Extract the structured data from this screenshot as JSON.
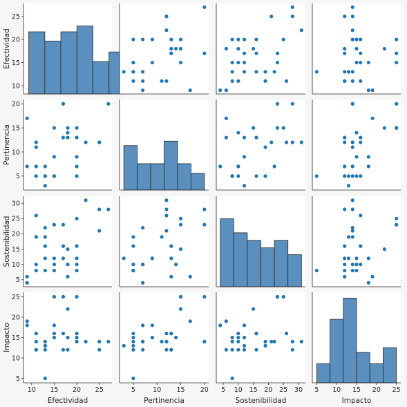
{
  "chart_data": {
    "type": "scatter",
    "subtype": "pairplot",
    "variables": [
      "Efectividad",
      "Pertinencia",
      "Sostenibilidad",
      "Impacto"
    ],
    "grid": false,
    "colors": {
      "marker": "#1f77b4",
      "hist_fill": "#5b8fbd",
      "hist_edge": "#262626",
      "background": "#f6f6f6",
      "panel": "#ffffff"
    },
    "axes": {
      "Efectividad": {
        "range": [
          8.2,
          27.8
        ],
        "ticks": [
          10,
          15,
          20,
          25
        ]
      },
      "Pertinencia": {
        "range": [
          2.1,
          20.9
        ],
        "ticks": [
          5,
          10,
          15,
          20
        ]
      },
      "Sostenibilidad": {
        "range": [
          2.7,
          32.3
        ],
        "ticks": [
          5,
          10,
          15,
          20,
          25,
          30
        ]
      },
      "Impacto": {
        "range": [
          3.9,
          26.1
        ],
        "ticks": [
          5,
          10,
          15,
          20,
          25
        ]
      }
    },
    "observations": [
      {
        "Efectividad": 9,
        "Pertinencia": 17,
        "Sostenibilidad": 6,
        "Impacto": 19
      },
      {
        "Efectividad": 9,
        "Pertinencia": 7,
        "Sostenibilidad": 4,
        "Impacto": 18
      },
      {
        "Efectividad": 11,
        "Pertinencia": 12,
        "Sostenibilidad": 26,
        "Impacto": 16
      },
      {
        "Efectividad": 11,
        "Pertinencia": 11,
        "Sostenibilidad": 19,
        "Impacto": 14
      },
      {
        "Efectividad": 11,
        "Pertinencia": 7,
        "Sostenibilidad": 10,
        "Impacto": 12
      },
      {
        "Efectividad": 11,
        "Pertinencia": 5,
        "Sostenibilidad": 8,
        "Impacto": 12
      },
      {
        "Efectividad": 13,
        "Pertinencia": 7,
        "Sostenibilidad": 22,
        "Impacto": 14
      },
      {
        "Efectividad": 13,
        "Pertinencia": 5,
        "Sostenibilidad": 19,
        "Impacto": 13
      },
      {
        "Efectividad": 13,
        "Pertinencia": 5,
        "Sostenibilidad": 16,
        "Impacto": 12
      },
      {
        "Efectividad": 13,
        "Pertinencia": 3,
        "Sostenibilidad": 12,
        "Impacto": 13
      },
      {
        "Efectividad": 13,
        "Pertinencia": 5,
        "Sostenibilidad": 8,
        "Impacto": 5
      },
      {
        "Efectividad": 15,
        "Pertinencia": 15,
        "Sostenibilidad": 23,
        "Impacto": 25
      },
      {
        "Efectividad": 15,
        "Pertinencia": 9,
        "Sostenibilidad": 12,
        "Impacto": 18
      },
      {
        "Efectividad": 15,
        "Pertinencia": 5,
        "Sostenibilidad": 8,
        "Impacto": 15
      },
      {
        "Efectividad": 15,
        "Pertinencia": 5,
        "Sostenibilidad": 10,
        "Impacto": 16
      },
      {
        "Efectividad": 17,
        "Pertinencia": 20,
        "Sostenibilidad": 23,
        "Impacto": 25
      },
      {
        "Efectividad": 17,
        "Pertinencia": 13,
        "Sostenibilidad": 16,
        "Impacto": 16
      },
      {
        "Efectividad": 17,
        "Pertinencia": 13,
        "Sostenibilidad": 12,
        "Impacto": 12
      },
      {
        "Efectividad": 18,
        "Pertinencia": 15,
        "Sostenibilidad": 15,
        "Impacto": 22
      },
      {
        "Efectividad": 18,
        "Pertinencia": 14,
        "Sostenibilidad": 10,
        "Impacto": 15
      },
      {
        "Efectividad": 18,
        "Pertinencia": 13,
        "Sostenibilidad": 6,
        "Impacto": 12
      },
      {
        "Efectividad": 20,
        "Pertinencia": 15,
        "Sostenibilidad": 25,
        "Impacto": 25
      },
      {
        "Efectividad": 20,
        "Pertinencia": 13,
        "Sostenibilidad": 16,
        "Impacto": 16
      },
      {
        "Efectividad": 20,
        "Pertinencia": 9,
        "Sostenibilidad": 12,
        "Impacto": 15
      },
      {
        "Efectividad": 20,
        "Pertinencia": 7,
        "Sostenibilidad": 10,
        "Impacto": 14
      },
      {
        "Efectividad": 20,
        "Pertinencia": 5,
        "Sostenibilidad": 8,
        "Impacto": 14
      },
      {
        "Efectividad": 22,
        "Pertinencia": 12,
        "Sostenibilidad": 31,
        "Impacto": 14
      },
      {
        "Efectividad": 25,
        "Pertinencia": 12,
        "Sostenibilidad": 28,
        "Impacto": 12
      },
      {
        "Efectividad": 25,
        "Pertinencia": 12,
        "Sostenibilidad": 21,
        "Impacto": 14
      },
      {
        "Efectividad": 27,
        "Pertinencia": 20,
        "Sostenibilidad": 28,
        "Impacto": 14
      }
    ],
    "histograms": {
      "Efectividad": {
        "edges": [
          9,
          12.667,
          16.333,
          20,
          23.667,
          27.333,
          31
        ],
        "heights": [
          18.2,
          15.5,
          18.2,
          19.9,
          9.5,
          12.3
        ],
        "axis_range": [
          7.8,
          28.0
        ]
      },
      "Pertinencia": {
        "edges": [
          3,
          5.833,
          8.667,
          11.5,
          14.333,
          17.167,
          20
        ],
        "heights": [
          13.0,
          7.7,
          7.7,
          14.3,
          7.7,
          4.9
        ],
        "axis_range": [
          2.1,
          20.9
        ]
      },
      "Sostenibilidad": {
        "edges": [
          4,
          8.5,
          13,
          17.5,
          22,
          26.5,
          31
        ],
        "heights": [
          19.9,
          15.8,
          13.6,
          11.4,
          13.6,
          9.4
        ],
        "axis_range": [
          2.7,
          32.3
        ]
      },
      "Impacto": {
        "edges": [
          5,
          8.333,
          11.667,
          15,
          18.333,
          21.667,
          25
        ],
        "heights": [
          5.6,
          18.6,
          24.8,
          8.9,
          5.6,
          10.3
        ],
        "axis_range": [
          3.9,
          26.1
        ]
      }
    }
  }
}
